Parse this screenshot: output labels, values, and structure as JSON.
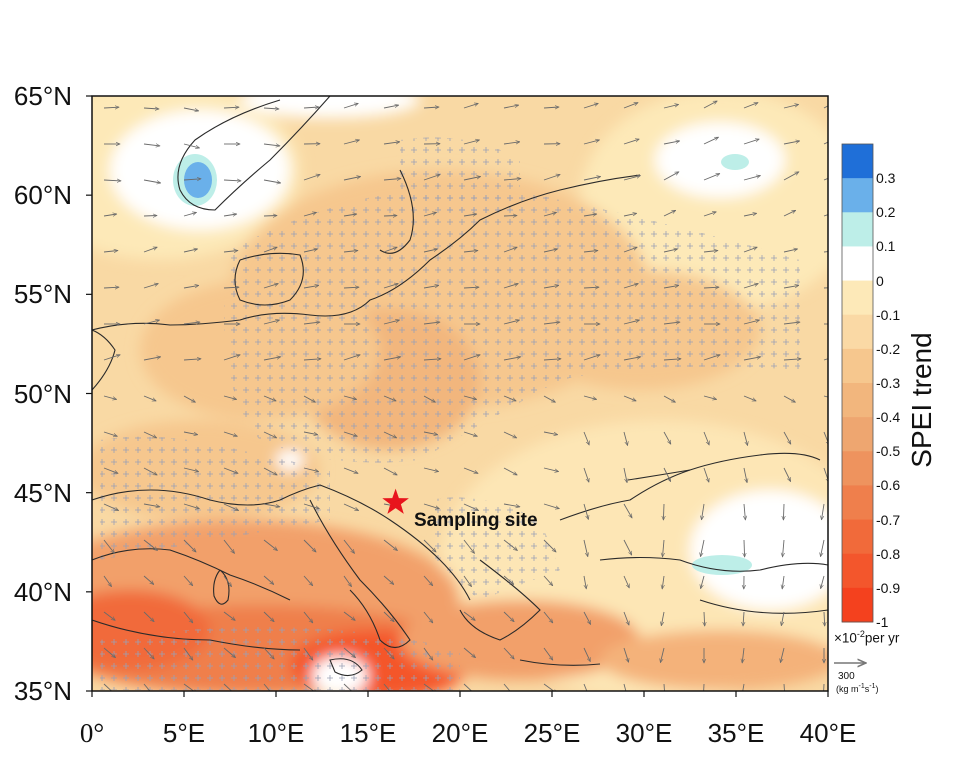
{
  "map": {
    "lat_labels": [
      "65°N",
      "60°N",
      "55°N",
      "50°N",
      "45°N",
      "40°N",
      "35°N"
    ],
    "lon_labels": [
      "0°",
      "5°E",
      "10°E",
      "15°E",
      "20°E",
      "25°E",
      "30°E",
      "35°E",
      "40°E"
    ],
    "lat_range": [
      35,
      65
    ],
    "lon_range": [
      0,
      40
    ],
    "site": {
      "label": "Sampling site",
      "lon": 16.5,
      "lat": 44.5,
      "marker": "star-icon",
      "color": "#e8141c"
    }
  },
  "colorbar": {
    "title": "SPEI trend",
    "ticks": [
      "0.3",
      "0.2",
      "0.1",
      "0",
      "-0.1",
      "-0.2",
      "-0.3",
      "-0.4",
      "-0.5",
      "-0.6",
      "-0.7",
      "-0.8",
      "-0.9",
      "-1"
    ],
    "colors_top_to_bottom": [
      "#1f6fd8",
      "#6ab0ea",
      "#bdeee8",
      "#ffffff",
      "#fde9b8",
      "#fad9a5",
      "#f6c78e",
      "#f2b67d",
      "#eea670",
      "#ee935e",
      "#ef7f4c",
      "#f16a3a",
      "#f3562c",
      "#f4411e"
    ],
    "unit_base": "×10",
    "unit_exp": "-2",
    "unit_suffix": "per yr"
  },
  "flux_reference": {
    "value": "300",
    "unit_prefix": "(kg m",
    "unit_exp1": "-1",
    "unit_mid": "s",
    "unit_exp2": "-1",
    "unit_suffix": ")"
  }
}
